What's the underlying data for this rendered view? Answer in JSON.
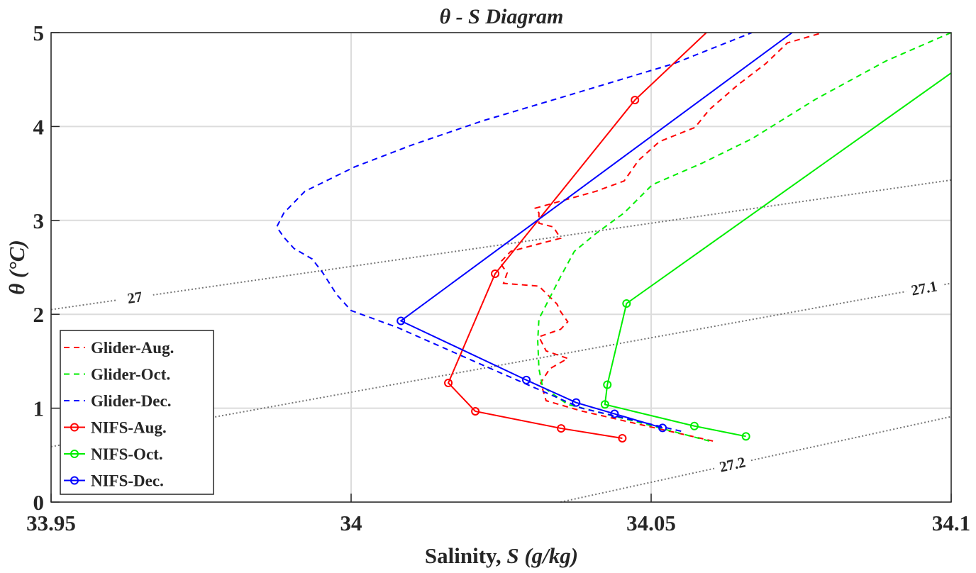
{
  "chart_data": {
    "type": "line",
    "title": "θ - S  Diagram",
    "xlabel": {
      "prefix": "Salinity, ",
      "symbol": "S",
      "unit": " (g/kg)"
    },
    "ylabel": "θ (°C)",
    "xlim": [
      33.95,
      34.1
    ],
    "ylim": [
      0,
      5
    ],
    "xticks": [
      "33.95",
      "34",
      "34.05",
      "34.1"
    ],
    "yticks": [
      "0",
      "1",
      "2",
      "3",
      "4",
      "5"
    ],
    "grid": true,
    "legend_position": "bottom-left",
    "series": [
      {
        "name": "Glider-Aug.",
        "color": "#ff0000",
        "style": "dashed",
        "marker": false,
        "x": [
          34.0603,
          34.0479,
          34.0384,
          34.0325,
          34.0316,
          34.0331,
          34.0361,
          34.0325,
          34.0313,
          34.0349,
          34.0361,
          34.0349,
          34.0343,
          34.0313,
          34.0254,
          34.026,
          34.0248,
          34.0266,
          34.0307,
          34.0349,
          34.0337,
          34.0313,
          34.0313,
          34.0307,
          34.0408,
          34.0455,
          34.0479,
          34.0514,
          34.0573,
          34.0597,
          34.0644,
          34.0691,
          34.0727,
          34.0786
        ],
        "y": [
          0.65,
          0.83,
          0.97,
          1.08,
          1.27,
          1.42,
          1.53,
          1.61,
          1.76,
          1.84,
          1.92,
          2.03,
          2.11,
          2.3,
          2.33,
          2.44,
          2.55,
          2.67,
          2.74,
          2.81,
          2.93,
          2.97,
          3.08,
          3.13,
          3.31,
          3.42,
          3.64,
          3.84,
          3.99,
          4.18,
          4.44,
          4.67,
          4.89,
          5.0
        ]
      },
      {
        "name": "Glider-Oct.",
        "color": "#00ee00",
        "style": "dashed",
        "marker": false,
        "x": [
          34.0597,
          34.0479,
          34.0361,
          34.0319,
          34.0313,
          34.0311,
          34.0313,
          34.0325,
          34.0349,
          34.0372,
          34.0408,
          34.0455,
          34.0502,
          34.0585,
          34.0668,
          34.0774,
          34.0892,
          34.1
        ],
        "y": [
          0.65,
          0.85,
          1.04,
          1.23,
          1.42,
          1.72,
          1.95,
          2.1,
          2.4,
          2.67,
          2.86,
          3.08,
          3.38,
          3.61,
          3.87,
          4.29,
          4.7,
          5.0
        ]
      },
      {
        "name": "Glider-Dec.",
        "color": "#0000ff",
        "style": "dashed",
        "marker": false,
        "x": [
          34.055,
          34.0384,
          34.0219,
          34.0077,
          34.0,
          33.9976,
          33.9953,
          33.9935,
          33.9905,
          33.9888,
          33.9876,
          33.9888,
          33.9923,
          34.0006,
          34.01,
          34.0219,
          34.0361,
          34.0538,
          34.0668
        ],
        "y": [
          0.755,
          1.0,
          1.46,
          1.86,
          2.04,
          2.21,
          2.44,
          2.59,
          2.7,
          2.82,
          2.93,
          3.08,
          3.31,
          3.57,
          3.8,
          4.06,
          4.33,
          4.67,
          5.0
        ]
      },
      {
        "name": "NIFS-Aug.",
        "color": "#ff0000",
        "style": "solid",
        "marker": true,
        "x": [
          34.0452,
          34.035,
          34.0207,
          34.0162,
          34.024,
          34.0473,
          34.0592
        ],
        "y": [
          0.68,
          0.785,
          0.967,
          1.269,
          2.432,
          4.282,
          5.0
        ],
        "markers_on": [
          0,
          1,
          2,
          3,
          4,
          5
        ]
      },
      {
        "name": "NIFS-Oct.",
        "color": "#00ee00",
        "style": "solid",
        "marker": true,
        "x": [
          34.0658,
          34.0572,
          34.0423,
          34.0427,
          34.0459,
          34.1
        ],
        "y": [
          0.7,
          0.81,
          1.04,
          1.25,
          2.115,
          4.57
        ],
        "markers_on": [
          0,
          1,
          2,
          3,
          4
        ]
      },
      {
        "name": "NIFS-Dec.",
        "color": "#0000ff",
        "style": "solid",
        "marker": true,
        "x": [
          34.0519,
          34.0439,
          34.0375,
          34.0292,
          34.0083,
          34.0735
        ],
        "y": [
          0.79,
          0.94,
          1.06,
          1.3,
          1.93,
          5.0
        ],
        "markers_on": [
          0,
          1,
          2,
          3,
          4
        ]
      }
    ],
    "contours": [
      {
        "label": "27",
        "x": [
          33.95,
          34.1
        ],
        "y": [
          2.05,
          3.43
        ]
      },
      {
        "label": "27.1",
        "x": [
          33.95,
          34.1
        ],
        "y": [
          0.59,
          2.33
        ]
      },
      {
        "label": "27.2",
        "x": [
          34.0349,
          34.1
        ],
        "y": [
          0,
          0.91
        ]
      }
    ]
  }
}
